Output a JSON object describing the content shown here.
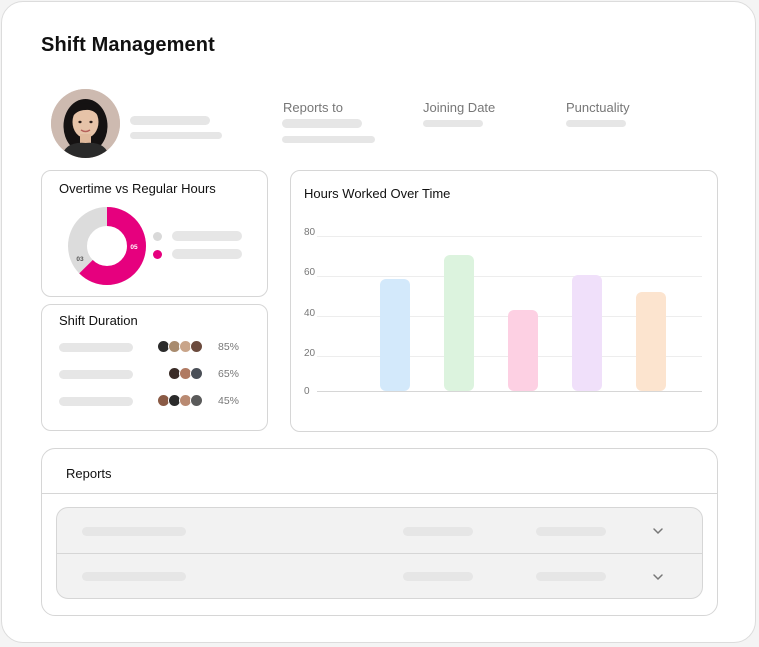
{
  "page": {
    "title": "Shift Management"
  },
  "profile": {
    "avatar_icon": "person-photo-icon",
    "fields": [
      {
        "label": "Reports to"
      },
      {
        "label": "Joining Date"
      },
      {
        "label": "Punctuality"
      }
    ]
  },
  "overtime_card": {
    "title": "Overtime vs Regular Hours",
    "donut": {
      "segments": [
        {
          "label": "05",
          "value": 5,
          "color": "#e6007e"
        },
        {
          "label": "03",
          "value": 3,
          "color": "#dcdcdc"
        }
      ]
    },
    "legend_colors": [
      "#d9d9d9",
      "#e6007e"
    ]
  },
  "shift_card": {
    "title": "Shift Duration",
    "rows": [
      {
        "percent": "85%",
        "avatars": 4
      },
      {
        "percent": "65%",
        "avatars": 3
      },
      {
        "percent": "45%",
        "avatars": 4
      }
    ]
  },
  "chart_card": {
    "title": "Hours Worked Over Time"
  },
  "chart_data": {
    "type": "bar",
    "title": "Hours Worked Over Time",
    "yticks": [
      "80",
      "60",
      "40",
      "20",
      "0"
    ],
    "ylim": [
      0,
      80
    ],
    "grid": true,
    "values": [
      58,
      70,
      42,
      60,
      51
    ],
    "colors": [
      "#d3e9fb",
      "#dcf3de",
      "#fdd0e3",
      "#f0e0fa",
      "#fce4cf"
    ]
  },
  "reports": {
    "title": "Reports",
    "rows": [
      {
        "chevron_icon": "chevron-down-icon"
      },
      {
        "chevron_icon": "chevron-down-icon"
      }
    ]
  }
}
